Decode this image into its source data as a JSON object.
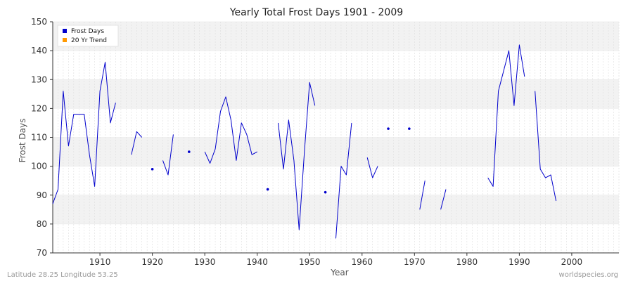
{
  "chart_data": {
    "type": "line",
    "title": "Yearly Total Frost Days 1901 - 2009",
    "xlabel": "Year",
    "ylabel": "Frost Days",
    "xlim": [
      1901,
      2009
    ],
    "ylim": [
      70,
      150
    ],
    "x_ticks": [
      1910,
      1920,
      1930,
      1940,
      1950,
      1960,
      1970,
      1980,
      1990,
      2000
    ],
    "y_ticks": [
      70,
      80,
      90,
      100,
      110,
      120,
      130,
      140,
      150
    ],
    "grid": true,
    "legend_position": "top-left",
    "series": [
      {
        "name": "Frost Days",
        "color": "#0000cc",
        "points": [
          [
            1901,
            87
          ],
          [
            1902,
            92
          ],
          [
            1903,
            126
          ],
          [
            1904,
            107
          ],
          [
            1905,
            118
          ],
          [
            1906,
            118
          ],
          [
            1907,
            118
          ],
          [
            1908,
            104
          ],
          [
            1909,
            93
          ],
          [
            1910,
            126
          ],
          [
            1911,
            136
          ],
          [
            1912,
            115
          ],
          [
            1913,
            122
          ],
          [
            1914,
            null
          ],
          [
            1916,
            104
          ],
          [
            1917,
            112
          ],
          [
            1918,
            110
          ],
          [
            1919,
            null
          ],
          [
            1920,
            99
          ],
          [
            1921,
            null
          ],
          [
            1922,
            102
          ],
          [
            1923,
            97
          ],
          [
            1924,
            111
          ],
          [
            1925,
            null
          ],
          [
            1927,
            105
          ],
          [
            1928,
            null
          ],
          [
            1930,
            105
          ],
          [
            1931,
            101
          ],
          [
            1932,
            106
          ],
          [
            1933,
            119
          ],
          [
            1934,
            124
          ],
          [
            1935,
            116
          ],
          [
            1936,
            102
          ],
          [
            1937,
            115
          ],
          [
            1938,
            111
          ],
          [
            1939,
            104
          ],
          [
            1940,
            105
          ],
          [
            1941,
            null
          ],
          [
            1942,
            92
          ],
          [
            1943,
            null
          ],
          [
            1944,
            115
          ],
          [
            1945,
            99
          ],
          [
            1946,
            116
          ],
          [
            1947,
            102
          ],
          [
            1948,
            78
          ],
          [
            1949,
            105
          ],
          [
            1950,
            129
          ],
          [
            1951,
            121
          ],
          [
            1952,
            null
          ],
          [
            1953,
            91
          ],
          [
            1954,
            null
          ],
          [
            1955,
            75
          ],
          [
            1956,
            100
          ],
          [
            1957,
            97
          ],
          [
            1958,
            115
          ],
          [
            1959,
            null
          ],
          [
            1961,
            103
          ],
          [
            1962,
            96
          ],
          [
            1963,
            100
          ],
          [
            1964,
            null
          ],
          [
            1965,
            113
          ],
          [
            1966,
            null
          ],
          [
            1969,
            113
          ],
          [
            1970,
            null
          ],
          [
            1971,
            85
          ],
          [
            1972,
            95
          ],
          [
            1973,
            null
          ],
          [
            1975,
            85
          ],
          [
            1976,
            92
          ],
          [
            1977,
            null
          ],
          [
            1984,
            96
          ],
          [
            1985,
            93
          ],
          [
            1986,
            126
          ],
          [
            1988,
            140
          ],
          [
            1989,
            121
          ],
          [
            1990,
            142
          ],
          [
            1991,
            131
          ],
          [
            1992,
            null
          ],
          [
            1993,
            126
          ],
          [
            1994,
            99
          ],
          [
            1995,
            96
          ],
          [
            1996,
            97
          ],
          [
            1997,
            88
          ]
        ]
      },
      {
        "name": "20 Yr Trend",
        "color": "#ff9900",
        "points": []
      }
    ]
  },
  "footer": {
    "left": "Latitude 28.25 Longitude 53.25",
    "right": "worldspecies.org"
  }
}
